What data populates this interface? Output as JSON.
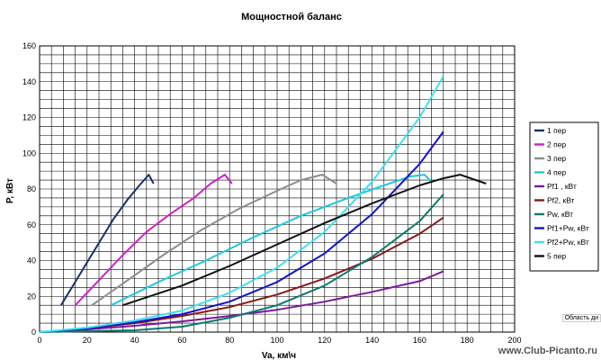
{
  "chart_data": {
    "type": "line",
    "title": "Мощностной баланс",
    "xlabel": "Va, км\\ч",
    "ylabel": "P, кВт",
    "xlim": [
      0,
      200
    ],
    "ylim": [
      0,
      160
    ],
    "xticks": [
      0,
      20,
      40,
      60,
      80,
      100,
      120,
      140,
      160,
      180,
      200
    ],
    "yticks": [
      0,
      20,
      40,
      60,
      80,
      100,
      120,
      140,
      160
    ],
    "grid": true,
    "legend_position": "right",
    "series": [
      {
        "name": "1 пер",
        "color": "#1a2e6e",
        "points": [
          [
            9,
            15
          ],
          [
            15,
            28
          ],
          [
            20,
            39
          ],
          [
            26,
            52
          ],
          [
            31,
            63
          ],
          [
            37,
            74
          ],
          [
            42,
            82
          ],
          [
            46,
            88
          ],
          [
            48,
            83
          ]
        ]
      },
      {
        "name": "2 пер",
        "color": "#d020c8",
        "points": [
          [
            15,
            15
          ],
          [
            25,
            29
          ],
          [
            35,
            43
          ],
          [
            45,
            56
          ],
          [
            55,
            66
          ],
          [
            65,
            75
          ],
          [
            72,
            83
          ],
          [
            78,
            88
          ],
          [
            81,
            83
          ]
        ]
      },
      {
        "name": "3 пер",
        "color": "#8c8c8c",
        "points": [
          [
            22,
            15
          ],
          [
            36,
            28
          ],
          [
            52,
            43
          ],
          [
            68,
            57
          ],
          [
            84,
            69
          ],
          [
            100,
            79
          ],
          [
            110,
            85
          ],
          [
            119,
            88
          ],
          [
            125,
            83
          ]
        ]
      },
      {
        "name": "4 пер",
        "color": "#1ec8e0",
        "points": [
          [
            30,
            15
          ],
          [
            50,
            28
          ],
          [
            70,
            40
          ],
          [
            90,
            53
          ],
          [
            110,
            65
          ],
          [
            130,
            75
          ],
          [
            145,
            82
          ],
          [
            156,
            87
          ],
          [
            162,
            88
          ],
          [
            165,
            84
          ]
        ]
      },
      {
        "name": "Pf1 , кВт",
        "color": "#7a1a9a",
        "points": [
          [
            0,
            0
          ],
          [
            20,
            1.5
          ],
          [
            40,
            3.5
          ],
          [
            60,
            6
          ],
          [
            80,
            9
          ],
          [
            100,
            12.5
          ],
          [
            120,
            17
          ],
          [
            140,
            22.5
          ],
          [
            160,
            28.5
          ],
          [
            170,
            34
          ]
        ]
      },
      {
        "name": "Pf2, кВт",
        "color": "#8a1818",
        "points": [
          [
            0,
            0
          ],
          [
            20,
            2
          ],
          [
            40,
            5
          ],
          [
            60,
            9
          ],
          [
            80,
            14
          ],
          [
            100,
            21
          ],
          [
            120,
            30
          ],
          [
            140,
            41
          ],
          [
            160,
            55
          ],
          [
            170,
            64
          ]
        ]
      },
      {
        "name": "Pw, кВт",
        "color": "#0a7a70",
        "points": [
          [
            0,
            0
          ],
          [
            40,
            1
          ],
          [
            60,
            3
          ],
          [
            80,
            8
          ],
          [
            100,
            15
          ],
          [
            120,
            26
          ],
          [
            140,
            42
          ],
          [
            160,
            62
          ],
          [
            170,
            77
          ]
        ]
      },
      {
        "name": "Pf1+Pw, кВт",
        "color": "#1414c8",
        "points": [
          [
            0,
            0
          ],
          [
            20,
            2
          ],
          [
            40,
            5.5
          ],
          [
            60,
            10
          ],
          [
            80,
            17
          ],
          [
            100,
            28
          ],
          [
            120,
            44
          ],
          [
            140,
            66
          ],
          [
            160,
            94
          ],
          [
            170,
            112
          ]
        ]
      },
      {
        "name": "Pf2+Pw, кВт",
        "color": "#40e0f0",
        "points": [
          [
            0,
            0
          ],
          [
            20,
            2.5
          ],
          [
            40,
            6.5
          ],
          [
            60,
            12
          ],
          [
            80,
            22
          ],
          [
            100,
            36
          ],
          [
            120,
            56
          ],
          [
            140,
            84
          ],
          [
            160,
            120
          ],
          [
            170,
            143
          ]
        ]
      },
      {
        "name": "5 пер",
        "color": "#111111",
        "points": [
          [
            35,
            15
          ],
          [
            60,
            26
          ],
          [
            80,
            37
          ],
          [
            100,
            49
          ],
          [
            120,
            61
          ],
          [
            140,
            72
          ],
          [
            160,
            82
          ],
          [
            170,
            86
          ],
          [
            177,
            88
          ],
          [
            188,
            83
          ]
        ]
      }
    ]
  },
  "footer": {
    "area_label": "Область ди",
    "watermark": "www.Club-Picanto.ru"
  }
}
